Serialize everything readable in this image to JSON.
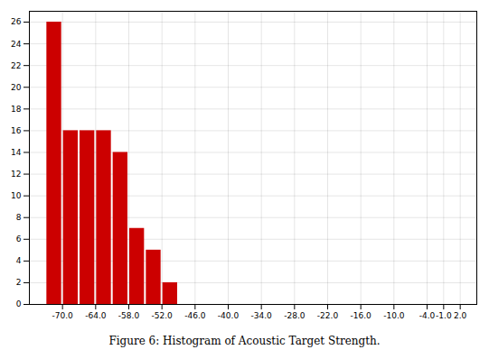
{
  "chart_data": {
    "type": "histogram",
    "title": "Figure 6: Histogram of Acoustic Target Strength.",
    "bins": [
      -73,
      -70,
      -67,
      -64,
      -61,
      -58,
      -55,
      -52,
      -49
    ],
    "values": [
      26,
      16,
      16,
      16,
      14,
      7,
      5,
      2
    ],
    "color": "#cc0000",
    "xlim": [
      -76.0,
      5.0
    ],
    "xticks": [
      {
        "value": -70,
        "label": "-70.0"
      },
      {
        "value": -64,
        "label": "-64.0"
      },
      {
        "value": -58,
        "label": "-58.0"
      },
      {
        "value": -52,
        "label": "-52.0"
      },
      {
        "value": -46,
        "label": "-46.0"
      },
      {
        "value": -40,
        "label": "-40.0"
      },
      {
        "value": -34,
        "label": "-34.0"
      },
      {
        "value": -28,
        "label": "-28.0"
      },
      {
        "value": -22,
        "label": "-22.0"
      },
      {
        "value": -16,
        "label": "-16.0"
      },
      {
        "value": -10,
        "label": "-10.0"
      },
      {
        "value": -4,
        "label": "-4.0"
      },
      {
        "value": -1,
        "label": "-1.0"
      },
      {
        "value": 2,
        "label": "2.0"
      }
    ],
    "ylim": [
      0,
      27
    ],
    "yticks": [
      0,
      2,
      4,
      6,
      8,
      10,
      12,
      14,
      16,
      18,
      20,
      22,
      24,
      26
    ],
    "grid": true
  }
}
